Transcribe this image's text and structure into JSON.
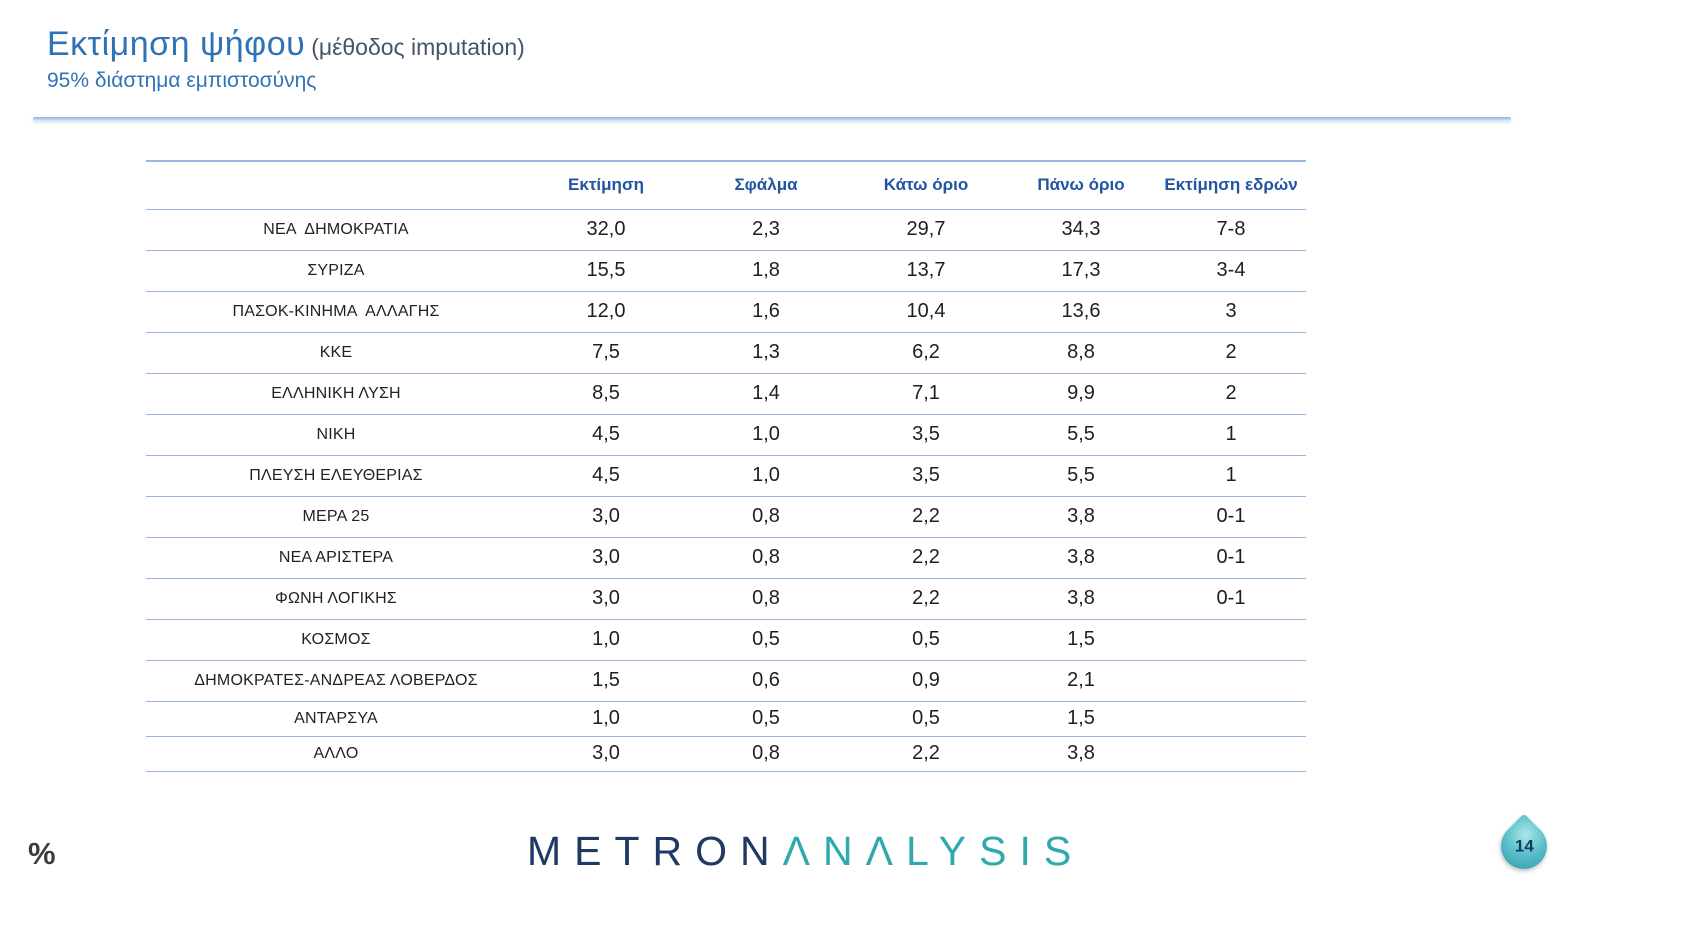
{
  "slide": {
    "title": "Εκτίμηση ψήφου",
    "title_suffix": "(μέθοδος imputation)",
    "subtitle": "95% διάστημα εμπιστοσύνης",
    "percent_label": "%",
    "page_number": "14",
    "logo": {
      "part1": "METRON",
      "part2": "ΛΝΛLYSIS"
    }
  },
  "table": {
    "headers": [
      "",
      "Εκτίμηση",
      "Σφάλμα",
      "Κάτω όριο",
      "Πάνω όριο",
      "Εκτίμηση εδρών"
    ],
    "rows": [
      {
        "party": "ΝΕΑ  ΔΗΜΟΚΡΑΤΙΑ",
        "values": [
          "32,0",
          "2,3",
          "29,7",
          "34,3",
          "7-8"
        ]
      },
      {
        "party": "ΣΥΡΙΖΑ",
        "values": [
          "15,5",
          "1,8",
          "13,7",
          "17,3",
          "3-4"
        ]
      },
      {
        "party": "ΠΑΣΟΚ-ΚΙΝΗΜΑ  ΑΛΛΑΓΗΣ",
        "values": [
          "12,0",
          "1,6",
          "10,4",
          "13,6",
          "3"
        ]
      },
      {
        "party": "ΚΚΕ",
        "values": [
          "7,5",
          "1,3",
          "6,2",
          "8,8",
          "2"
        ]
      },
      {
        "party": "ΕΛΛΗΝΙΚΗ ΛΥΣΗ",
        "values": [
          "8,5",
          "1,4",
          "7,1",
          "9,9",
          "2"
        ]
      },
      {
        "party": "ΝΙΚΗ",
        "values": [
          "4,5",
          "1,0",
          "3,5",
          "5,5",
          "1"
        ]
      },
      {
        "party": "ΠΛΕΥΣΗ ΕΛΕΥΘΕΡΙΑΣ",
        "values": [
          "4,5",
          "1,0",
          "3,5",
          "5,5",
          "1"
        ]
      },
      {
        "party": "ΜΕΡΑ 25",
        "values": [
          "3,0",
          "0,8",
          "2,2",
          "3,8",
          "0-1"
        ]
      },
      {
        "party": "ΝΕΑ ΑΡΙΣΤΕΡΑ",
        "values": [
          "3,0",
          "0,8",
          "2,2",
          "3,8",
          "0-1"
        ]
      },
      {
        "party": "ΦΩΝΗ ΛΟΓΙΚΗΣ",
        "values": [
          "3,0",
          "0,8",
          "2,2",
          "3,8",
          "0-1"
        ]
      },
      {
        "party": "ΚΟΣΜΟΣ",
        "values": [
          "1,0",
          "0,5",
          "0,5",
          "1,5",
          ""
        ]
      },
      {
        "party": "ΔΗΜΟΚΡΑΤΕΣ-ΑΝΔΡΕΑΣ ΛΟΒΕΡΔΟΣ",
        "values": [
          "1,5",
          "0,6",
          "0,9",
          "2,1",
          ""
        ]
      },
      {
        "party": "ΑΝΤΑΡΣΥΑ",
        "values": [
          "1,0",
          "0,5",
          "0,5",
          "1,5",
          ""
        ]
      },
      {
        "party": "ΑΛΛΟ",
        "values": [
          "3,0",
          "0,8",
          "2,2",
          "3,8",
          ""
        ]
      }
    ]
  },
  "colors": {
    "accent_blue": "#2e74b5",
    "suffix_blue": "#44546a",
    "header_blue": "#2155a3",
    "line_blue": "#9ab7e0",
    "body_text": "#1f1f1f",
    "logo_navy": "#1f3864",
    "logo_teal": "#2ea9ad",
    "badge_teal": "#2d95a8"
  }
}
